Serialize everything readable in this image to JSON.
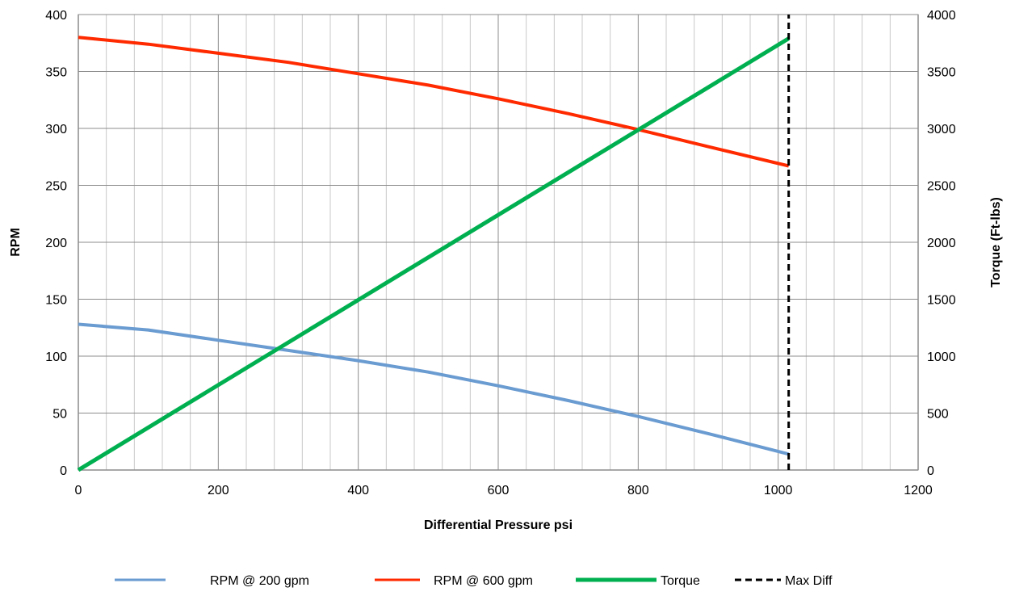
{
  "chart_data": {
    "type": "line",
    "title": "",
    "xlabel": "Differential Pressure psi",
    "ylabel": "RPM",
    "y2label": "Torque (Ft-lbs)",
    "xlim": [
      0,
      1200
    ],
    "ylim": [
      0,
      400
    ],
    "y2lim": [
      0,
      4000
    ],
    "x_ticks": [
      "0",
      "200",
      "400",
      "600",
      "800",
      "1000",
      "1200"
    ],
    "y_ticks": [
      "0",
      "50",
      "100",
      "150",
      "200",
      "250",
      "300",
      "350",
      "400"
    ],
    "y2_ticks": [
      "0",
      "500",
      "1000",
      "1500",
      "2000",
      "2500",
      "3000",
      "3500",
      "4000"
    ],
    "grid": true,
    "legend_position": "bottom",
    "series": [
      {
        "name": "RPM @ 200 gpm",
        "axis": "left",
        "color": "#6a9bd1",
        "points": [
          [
            0,
            128
          ],
          [
            100,
            123
          ],
          [
            200,
            114
          ],
          [
            300,
            105
          ],
          [
            400,
            96
          ],
          [
            500,
            86
          ],
          [
            600,
            74
          ],
          [
            700,
            61
          ],
          [
            800,
            47
          ],
          [
            900,
            32
          ],
          [
            1015,
            14
          ]
        ]
      },
      {
        "name": "RPM @ 600 gpm",
        "axis": "left",
        "color": "#ff2a00",
        "points": [
          [
            0,
            380
          ],
          [
            100,
            374
          ],
          [
            200,
            366
          ],
          [
            300,
            358
          ],
          [
            400,
            348
          ],
          [
            500,
            338
          ],
          [
            600,
            326
          ],
          [
            700,
            313
          ],
          [
            800,
            299
          ],
          [
            900,
            284
          ],
          [
            1015,
            267
          ]
        ]
      },
      {
        "name": "Torque",
        "axis": "right",
        "color": "#00b050",
        "points": [
          [
            0,
            0
          ],
          [
            1015,
            3790
          ]
        ]
      },
      {
        "name": "Max Diff",
        "axis": "right",
        "color": "#000000",
        "dashed": true,
        "points": [
          [
            1015,
            0
          ],
          [
            1015,
            4000
          ]
        ]
      }
    ]
  }
}
